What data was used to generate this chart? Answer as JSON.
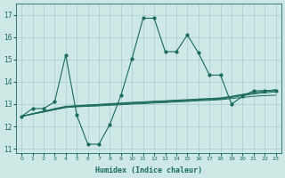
{
  "xlabel": "Humidex (Indice chaleur)",
  "xlim": [
    -0.5,
    23.5
  ],
  "ylim": [
    10.8,
    17.5
  ],
  "yticks": [
    11,
    12,
    13,
    14,
    15,
    16,
    17
  ],
  "xticks": [
    0,
    1,
    2,
    3,
    4,
    5,
    6,
    7,
    8,
    9,
    10,
    11,
    12,
    13,
    14,
    15,
    16,
    17,
    18,
    19,
    20,
    21,
    22,
    23
  ],
  "bg_color": "#cde8e5",
  "grid_color": "#a8ceca",
  "line_color": "#1a6b5a",
  "line1_x": [
    0,
    1,
    2,
    3,
    4,
    5,
    6,
    7,
    8,
    9,
    10,
    11,
    12,
    13,
    14,
    15,
    16,
    17,
    18,
    19,
    20,
    21,
    22,
    23
  ],
  "line1_y": [
    12.45,
    12.8,
    12.8,
    13.1,
    15.2,
    12.5,
    11.2,
    11.2,
    12.1,
    13.4,
    15.05,
    16.85,
    16.85,
    15.35,
    15.35,
    16.1,
    15.3,
    14.3,
    14.3,
    13.0,
    13.35,
    13.6,
    13.6,
    13.6
  ],
  "line2_x": [
    0,
    1,
    2,
    3,
    4,
    5,
    6,
    7,
    8,
    9,
    10,
    11,
    12,
    13,
    14,
    15,
    16,
    17,
    18,
    19,
    20,
    21,
    22,
    23
  ],
  "line2_y": [
    12.45,
    12.55,
    12.65,
    12.75,
    12.85,
    12.88,
    12.9,
    12.92,
    12.95,
    12.97,
    13.0,
    13.02,
    13.05,
    13.07,
    13.1,
    13.12,
    13.15,
    13.17,
    13.2,
    13.25,
    13.3,
    13.35,
    13.38,
    13.4
  ],
  "line3_x": [
    0,
    1,
    2,
    3,
    4,
    5,
    6,
    7,
    8,
    9,
    10,
    11,
    12,
    13,
    14,
    15,
    16,
    17,
    18,
    19,
    20,
    21,
    22,
    23
  ],
  "line3_y": [
    12.45,
    12.55,
    12.65,
    12.75,
    12.85,
    12.9,
    12.92,
    12.95,
    12.97,
    13.0,
    13.03,
    13.05,
    13.08,
    13.1,
    13.13,
    13.15,
    13.18,
    13.2,
    13.23,
    13.3,
    13.38,
    13.45,
    13.5,
    13.55
  ],
  "line4_x": [
    0,
    1,
    2,
    3,
    4,
    5,
    6,
    7,
    8,
    9,
    10,
    11,
    12,
    13,
    14,
    15,
    16,
    17,
    18,
    19,
    20,
    21,
    22,
    23
  ],
  "line4_y": [
    12.45,
    12.57,
    12.68,
    12.78,
    12.88,
    12.92,
    12.95,
    12.97,
    13.0,
    13.03,
    13.06,
    13.08,
    13.11,
    13.13,
    13.16,
    13.18,
    13.21,
    13.23,
    13.26,
    13.33,
    13.42,
    13.5,
    13.56,
    13.62
  ],
  "line5_x": [
    0,
    1,
    2,
    3,
    4,
    5,
    6,
    7,
    8,
    9,
    10,
    11,
    12,
    13,
    14,
    15,
    16,
    17,
    18,
    19,
    20,
    21,
    22,
    23
  ],
  "line5_y": [
    12.45,
    12.57,
    12.68,
    12.8,
    12.9,
    12.93,
    12.96,
    12.99,
    13.02,
    13.05,
    13.08,
    13.1,
    13.13,
    13.15,
    13.18,
    13.2,
    13.23,
    13.25,
    13.28,
    13.35,
    13.44,
    13.52,
    13.58,
    13.65
  ]
}
